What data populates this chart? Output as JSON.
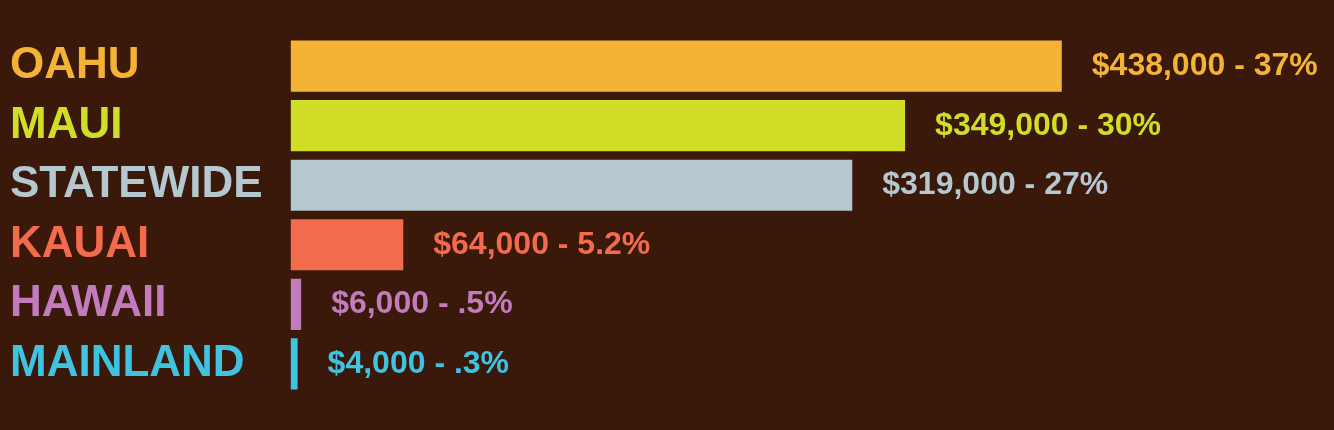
{
  "chart_data": {
    "type": "bar",
    "orientation": "horizontal",
    "categories": [
      "OAHU",
      "MAUI",
      "STATEWIDE",
      "KAUAI",
      "HAWAII",
      "MAINLAND"
    ],
    "values": [
      438000,
      349000,
      319000,
      64000,
      6000,
      4000
    ],
    "colors": [
      "#f5b335",
      "#d0de28",
      "#b5c7cf",
      "#f26b4c",
      "#c27bbd",
      "#3fc3e0"
    ],
    "value_labels": [
      "$438,000 - 37%",
      "$349,000 - 30%",
      "$319,000 - 27%",
      "$64,000 - 5.2%",
      "$6,000 - .5%",
      "$4,000 - .3%"
    ],
    "legend": false
  }
}
